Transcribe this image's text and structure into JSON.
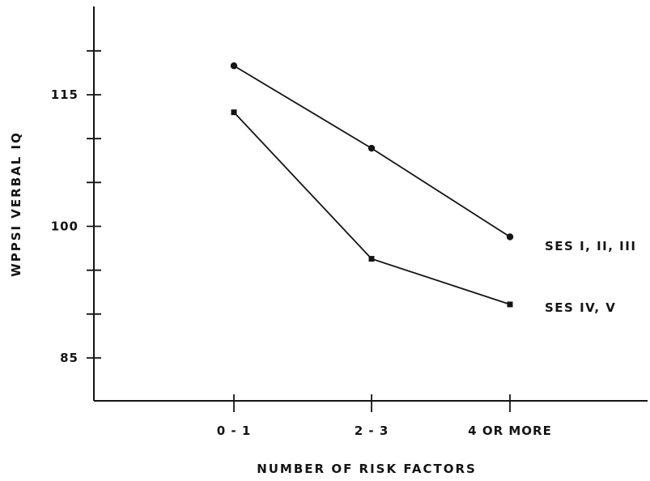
{
  "chart_data": {
    "type": "line",
    "title": "",
    "xlabel": "NUMBER OF RISK FACTORS",
    "ylabel": "WPPSI VERBAL IQ",
    "categories": [
      "0 - 1",
      "2 - 3",
      "4 OR MORE"
    ],
    "y_ticks_labeled": [
      "85",
      "100",
      "115"
    ],
    "y_tick_values": [
      85,
      90,
      95,
      100,
      105,
      110,
      115,
      120
    ],
    "ylim": [
      80,
      128
    ],
    "grid": false,
    "legend": "inline labels at right end of each line",
    "series": [
      {
        "name": "SES I, II, III",
        "marker": "circle",
        "values": [
          118.3,
          108.9,
          98.8
        ]
      },
      {
        "name": "SES IV, V",
        "marker": "square",
        "values": [
          113.0,
          96.3,
          91.1
        ]
      }
    ]
  }
}
